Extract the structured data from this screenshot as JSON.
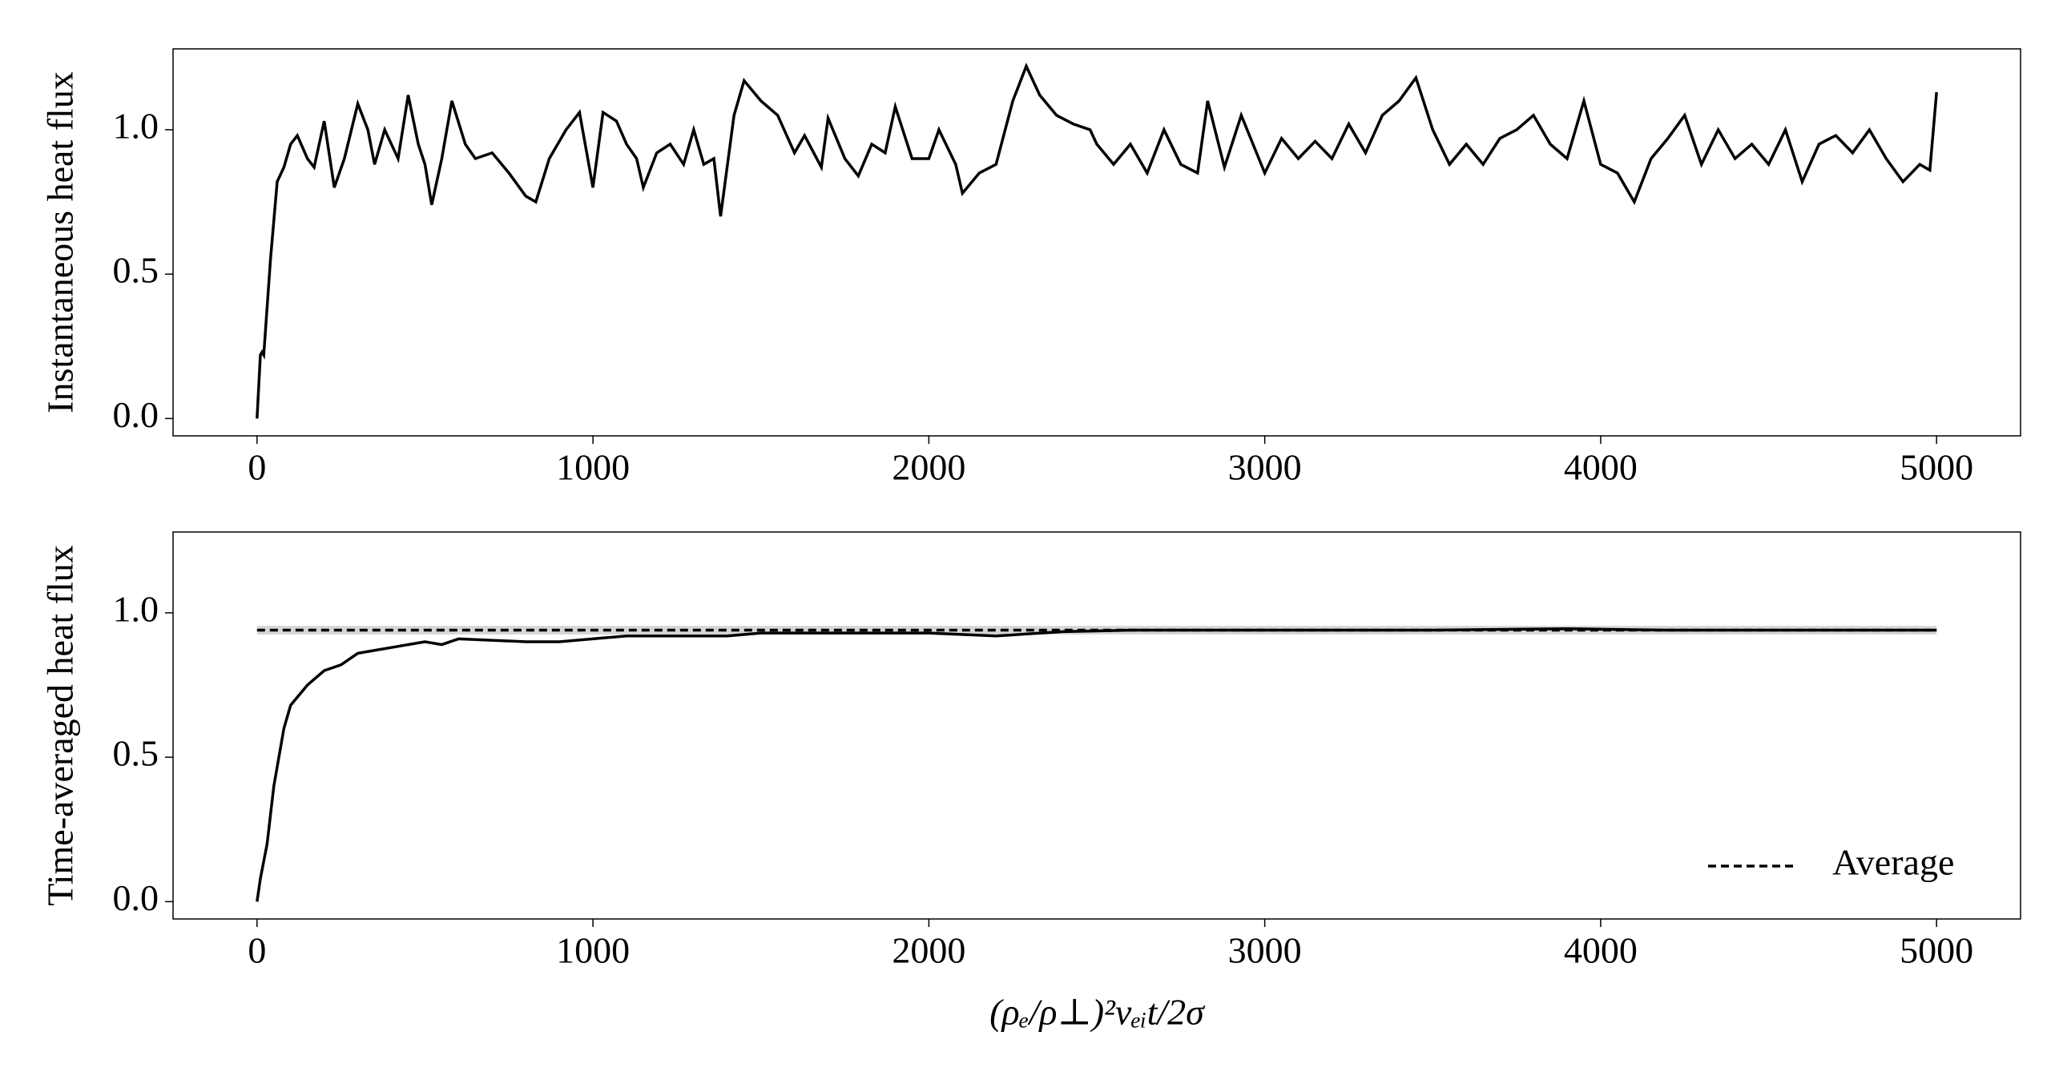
{
  "chart_data": [
    {
      "type": "line",
      "ylabel": "Instantaneous heat flux",
      "xlim": [
        -250,
        5250
      ],
      "xticks": [
        0,
        1000,
        2000,
        3000,
        4000,
        5000
      ],
      "ylim": [
        -0.06,
        1.28
      ],
      "yticks": [
        {
          "value": 0,
          "label": "0.0"
        },
        0.5,
        {
          "value": 1,
          "label": "1.0"
        }
      ],
      "grid": false,
      "series": [
        {
          "color": "#000000",
          "x": [
            0,
            10,
            15,
            20,
            40,
            60,
            80,
            100,
            120,
            150,
            170,
            200,
            230,
            260,
            300,
            330,
            350,
            380,
            420,
            450,
            480,
            500,
            520,
            550,
            580,
            620,
            650,
            700,
            750,
            800,
            830,
            870,
            920,
            960,
            1000,
            1030,
            1070,
            1100,
            1130,
            1150,
            1190,
            1230,
            1270,
            1300,
            1330,
            1360,
            1380,
            1420,
            1450,
            1500,
            1550,
            1600,
            1630,
            1680,
            1700,
            1750,
            1790,
            1830,
            1870,
            1900,
            1950,
            2000,
            2030,
            2080,
            2100,
            2150,
            2200,
            2250,
            2290,
            2330,
            2380,
            2430,
            2480,
            2500,
            2550,
            2600,
            2650,
            2700,
            2750,
            2800,
            2830,
            2880,
            2930,
            3000,
            3050,
            3100,
            3150,
            3200,
            3250,
            3300,
            3350,
            3400,
            3450,
            3500,
            3550,
            3600,
            3650,
            3700,
            3750,
            3800,
            3850,
            3900,
            3950,
            4000,
            4050,
            4100,
            4150,
            4200,
            4250,
            4300,
            4350,
            4400,
            4450,
            4500,
            4550,
            4600,
            4650,
            4700,
            4750,
            4800,
            4850,
            4900,
            4950,
            4980,
            5000
          ],
          "values": [
            0,
            0.22,
            0.23,
            0.22,
            0.55,
            0.82,
            0.87,
            0.95,
            0.98,
            0.9,
            0.87,
            1.03,
            0.8,
            0.9,
            1.09,
            1.0,
            0.88,
            1.0,
            0.9,
            1.12,
            0.95,
            0.88,
            0.74,
            0.9,
            1.1,
            0.95,
            0.9,
            0.92,
            0.85,
            0.77,
            0.75,
            0.9,
            1.0,
            1.06,
            0.8,
            1.06,
            1.03,
            0.95,
            0.9,
            0.8,
            0.92,
            0.95,
            0.88,
            1.0,
            0.88,
            0.9,
            0.7,
            1.05,
            1.17,
            1.1,
            1.05,
            0.92,
            0.98,
            0.87,
            1.04,
            0.9,
            0.84,
            0.95,
            0.92,
            1.08,
            0.9,
            0.9,
            1.0,
            0.88,
            0.78,
            0.85,
            0.88,
            1.1,
            1.22,
            1.12,
            1.05,
            1.02,
            1.0,
            0.95,
            0.88,
            0.95,
            0.85,
            1.0,
            0.88,
            0.85,
            1.1,
            0.87,
            1.05,
            0.85,
            0.97,
            0.9,
            0.96,
            0.9,
            1.02,
            0.92,
            1.05,
            1.1,
            1.18,
            1.0,
            0.88,
            0.95,
            0.88,
            0.97,
            1.0,
            1.05,
            0.95,
            0.9,
            1.1,
            0.88,
            0.85,
            0.75,
            0.9,
            0.97,
            1.05,
            0.88,
            1.0,
            0.9,
            0.95,
            0.88,
            1.0,
            0.82,
            0.95,
            0.98,
            0.92,
            1.0,
            0.9,
            0.82,
            0.88,
            0.86,
            1.13
          ]
        }
      ]
    },
    {
      "type": "line",
      "ylabel": "Time-averaged heat flux",
      "xlabel": "(ρₑ/ρ⊥)²νₑᵢt/2σ",
      "xlim": [
        -250,
        5250
      ],
      "xticks": [
        0,
        1000,
        2000,
        3000,
        4000,
        5000
      ],
      "ylim": [
        -0.06,
        1.28
      ],
      "yticks": [
        {
          "value": 0,
          "label": "0.0"
        },
        0.5,
        {
          "value": 1,
          "label": "1.0"
        }
      ],
      "grid": false,
      "legend": "lower right",
      "band": {
        "x": [
          0,
          5000
        ],
        "lower": 0.925,
        "upper": 0.955,
        "color": "#bbbbbb"
      },
      "series": [
        {
          "color": "#000000",
          "x": [
            0,
            10,
            30,
            50,
            80,
            100,
            150,
            200,
            250,
            300,
            350,
            400,
            500,
            550,
            600,
            800,
            900,
            1000,
            1100,
            1300,
            1400,
            1500,
            1700,
            2000,
            2200,
            2400,
            2600,
            3000,
            3500,
            3900,
            4200,
            5000
          ],
          "values": [
            0,
            0.08,
            0.2,
            0.4,
            0.6,
            0.68,
            0.75,
            0.8,
            0.82,
            0.86,
            0.87,
            0.88,
            0.9,
            0.89,
            0.91,
            0.9,
            0.9,
            0.91,
            0.92,
            0.92,
            0.92,
            0.93,
            0.93,
            0.93,
            0.92,
            0.935,
            0.94,
            0.94,
            0.94,
            0.945,
            0.94,
            0.94
          ]
        },
        {
          "name": "Average",
          "color": "#000000",
          "dashed": true,
          "x": [
            0,
            5000
          ],
          "values": [
            0.94,
            0.94
          ]
        }
      ]
    }
  ]
}
